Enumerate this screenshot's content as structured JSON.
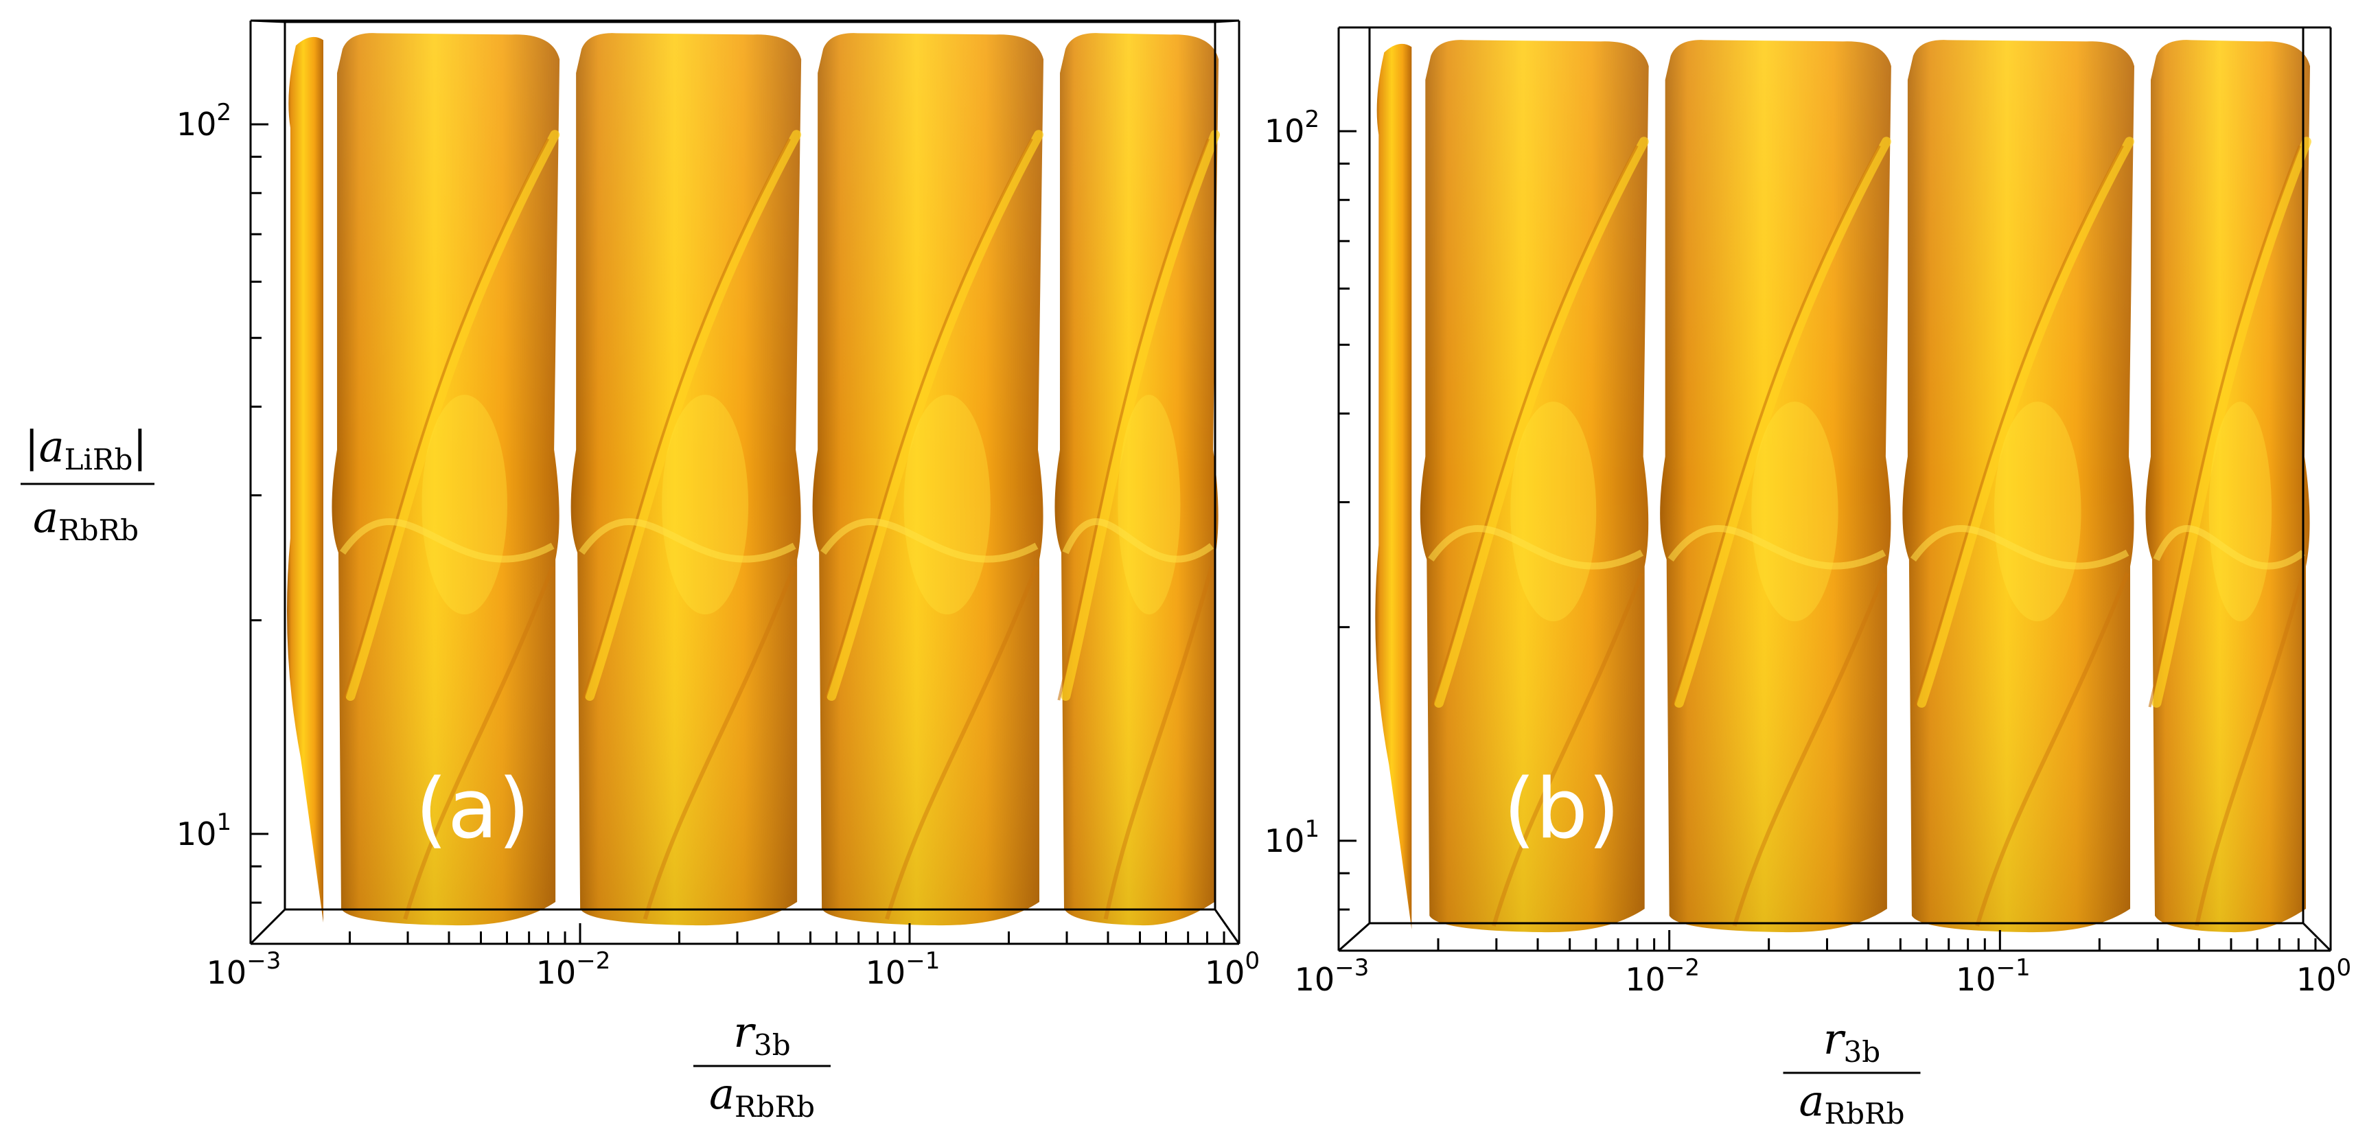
{
  "chart_data": [
    {
      "type": "surface3d",
      "panel_label": "(a)",
      "xscale": "log",
      "yscale": "log",
      "xlim": [
        0.001,
        1
      ],
      "ylim": [
        7,
        140
      ],
      "x_ticks": [
        {
          "base": "10",
          "exp": "−3",
          "value": 0.001
        },
        {
          "base": "10",
          "exp": "−2",
          "value": 0.01
        },
        {
          "base": "10",
          "exp": "−1",
          "value": 0.1
        },
        {
          "base": "10",
          "exp": "0",
          "value": 1
        }
      ],
      "y_ticks": [
        {
          "base": "10",
          "exp": "1",
          "value": 10
        },
        {
          "base": "10",
          "exp": "2",
          "value": 100
        }
      ],
      "xlabel": {
        "num_var": "r",
        "num_sub": "3b",
        "den_var": "a",
        "den_sub": "RbRb"
      },
      "ylabel": {
        "num_var": "a",
        "num_sub": "LiRb",
        "den_var": "a",
        "den_sub": "RbRb"
      },
      "surface_color": "#f5a413",
      "highlight_color": "#ffd21f",
      "shadow_color": "#c9740a",
      "lobe_boundaries": [
        0.0016,
        0.0085,
        0.046,
        0.25,
        0.85
      ],
      "lobe_lower_y": [
        7.5,
        7.5,
        7.5,
        7.5,
        7.5
      ],
      "lobe_upper_y": [
        135,
        135,
        135,
        135,
        135
      ],
      "grid": false
    },
    {
      "type": "surface3d",
      "panel_label": "(b)",
      "xscale": "log",
      "yscale": "log",
      "xlim": [
        0.001,
        1
      ],
      "ylim": [
        7,
        140
      ],
      "x_ticks": [
        {
          "base": "10",
          "exp": "−3",
          "value": 0.001
        },
        {
          "base": "10",
          "exp": "−2",
          "value": 0.01
        },
        {
          "base": "10",
          "exp": "−1",
          "value": 0.1
        },
        {
          "base": "10",
          "exp": "0",
          "value": 1
        }
      ],
      "y_ticks": [
        {
          "base": "10",
          "exp": "1",
          "value": 10
        },
        {
          "base": "10",
          "exp": "2",
          "value": 100
        }
      ],
      "xlabel": {
        "num_var": "r",
        "num_sub": "3b",
        "den_var": "a",
        "den_sub": "RbRb"
      },
      "ylabel": {
        "num_var": "",
        "num_sub": "",
        "den_var": "",
        "den_sub": ""
      },
      "surface_color": "#f5a413",
      "highlight_color": "#ffd21f",
      "shadow_color": "#c9740a",
      "lobe_boundaries": [
        0.0016,
        0.0085,
        0.046,
        0.25,
        0.85
      ],
      "lobe_lower_y": [
        7.5,
        7.5,
        7.5,
        7.5,
        7.5
      ],
      "lobe_upper_y": [
        135,
        135,
        135,
        135,
        135
      ],
      "grid": false
    }
  ]
}
